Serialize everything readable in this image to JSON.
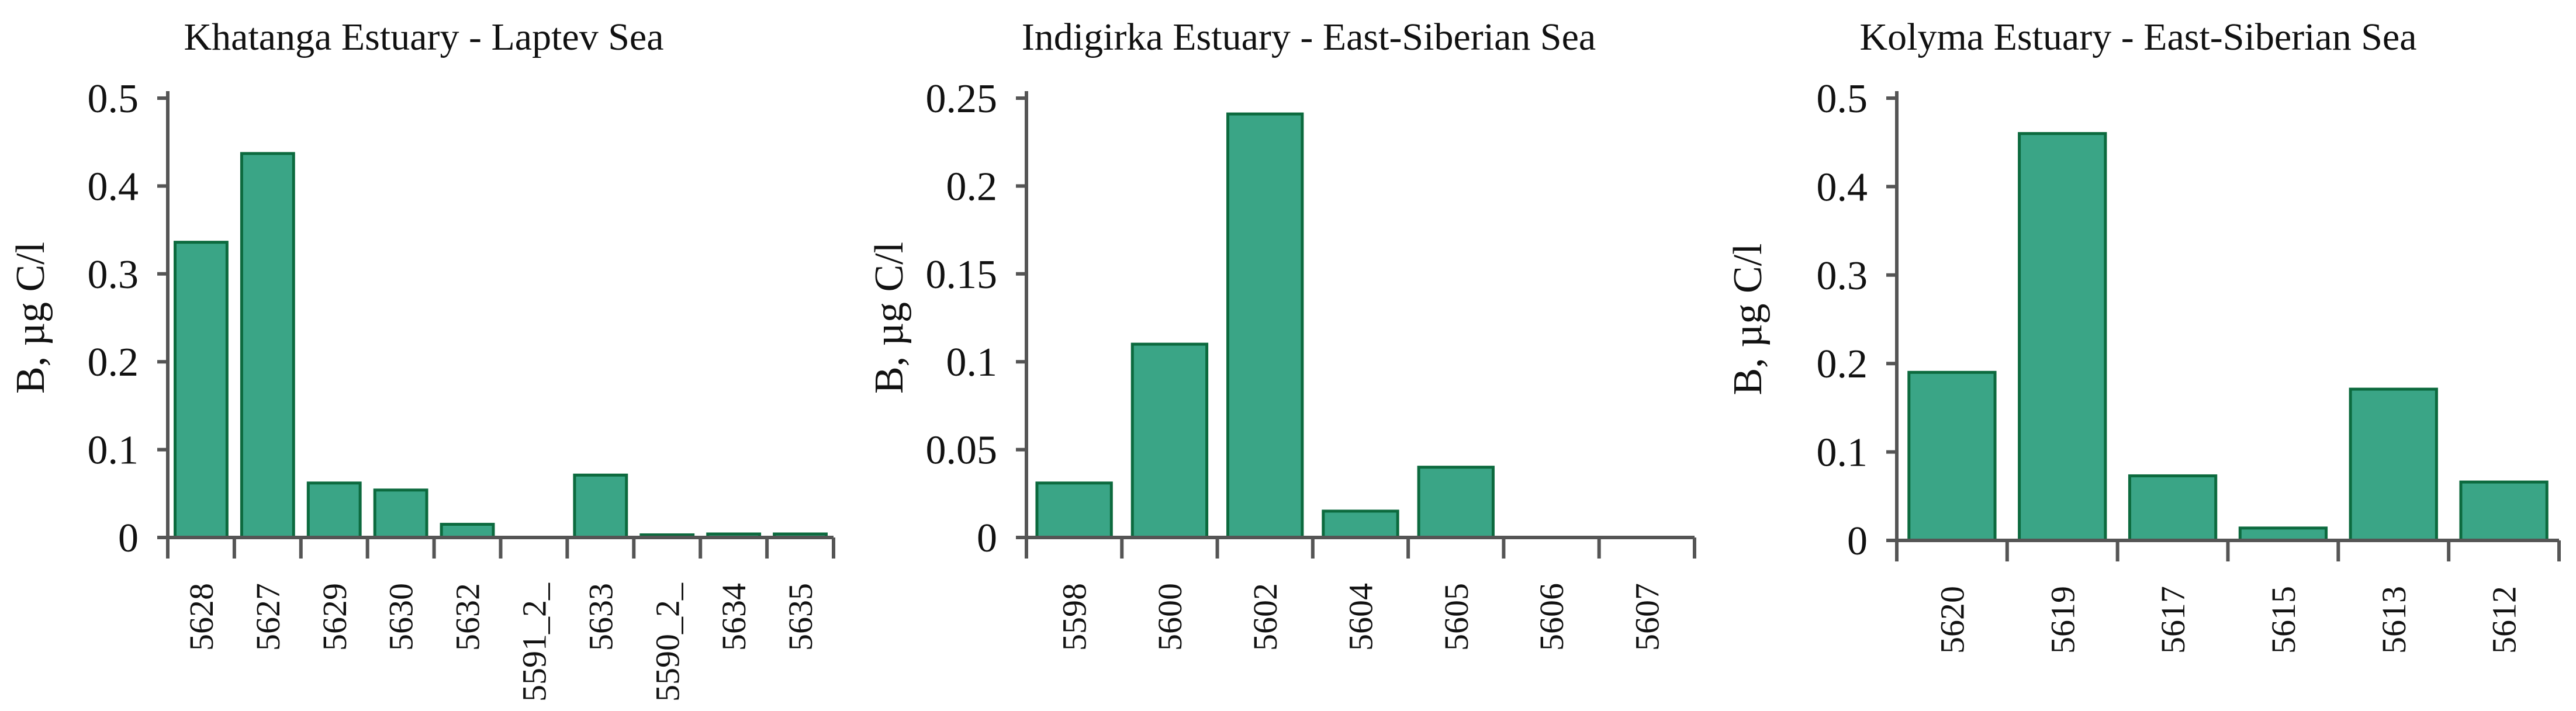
{
  "chart_data": [
    {
      "type": "bar",
      "title": "Khatanga Estuary - Laptev Sea",
      "ylabel": "B, µg C/l",
      "xlabel": "",
      "ylim": [
        0,
        0.5
      ],
      "yticks": [
        "0",
        "0.1",
        "0.2",
        "0.3",
        "0.4",
        "0.5"
      ],
      "categories": [
        "5628",
        "5627",
        "5629",
        "5630",
        "5632",
        "5591_2_",
        "5633",
        "5590_2_",
        "5634",
        "5635"
      ],
      "values": [
        0.336,
        0.437,
        0.062,
        0.054,
        0.015,
        0.0,
        0.071,
        0.003,
        0.004,
        0.004
      ],
      "colors": {
        "fill": "#3aa586",
        "edge": "#0c6a3e"
      }
    },
    {
      "type": "bar",
      "title": "Indigirka Estuary - East-Siberian Sea",
      "ylabel": "B, µg C/l",
      "xlabel": "",
      "ylim": [
        0,
        0.25
      ],
      "yticks": [
        "0",
        "0.05",
        "0.1",
        "0.15",
        "0.2",
        "0.25"
      ],
      "categories": [
        "5598",
        "5600",
        "5602",
        "5604",
        "5605",
        "5606",
        "5607"
      ],
      "values": [
        0.031,
        0.11,
        0.241,
        0.015,
        0.04,
        0.0,
        0.0
      ],
      "colors": {
        "fill": "#3aa586",
        "edge": "#0c6a3e"
      }
    },
    {
      "type": "bar",
      "title": "Kolyma Estuary - East-Siberian Sea",
      "ylabel": "B, µg C/l",
      "xlabel": "",
      "ylim": [
        0,
        0.5
      ],
      "yticks": [
        "0",
        "0.1",
        "0.2",
        "0.3",
        "0.4",
        "0.5"
      ],
      "categories": [
        "5620",
        "5619",
        "5617",
        "5615",
        "5613",
        "5612"
      ],
      "values": [
        0.19,
        0.46,
        0.073,
        0.014,
        0.171,
        0.066
      ],
      "colors": {
        "fill": "#3aa586",
        "edge": "#0c6a3e"
      }
    }
  ]
}
